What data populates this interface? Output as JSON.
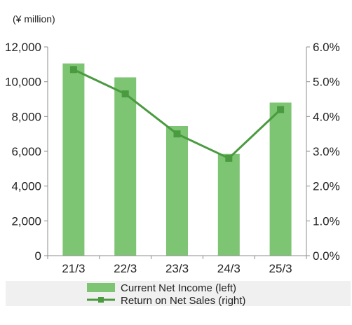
{
  "chart_data": {
    "type": "bar",
    "unit_label": "(¥ million)",
    "categories": [
      "21/3",
      "22/3",
      "23/3",
      "24/3",
      "25/3"
    ],
    "series": [
      {
        "name": "Current Net Income (left)",
        "type": "bar",
        "axis": "left",
        "color": "#7dc473",
        "values": [
          11050,
          10250,
          7450,
          5850,
          8800
        ]
      },
      {
        "name": "Return on Net Sales (right)",
        "type": "line",
        "axis": "right",
        "color": "#4a9a3f",
        "values": [
          5.35,
          4.65,
          3.5,
          2.8,
          4.2
        ]
      }
    ],
    "y_left": {
      "ylim": [
        0,
        12000
      ],
      "ticks": [
        0,
        2000,
        4000,
        6000,
        8000,
        10000,
        12000
      ],
      "tick_labels": [
        "0",
        "2,000",
        "4,000",
        "6,000",
        "8,000",
        "10,000",
        "12,000"
      ]
    },
    "y_right": {
      "ylim": [
        0,
        6
      ],
      "ticks": [
        0,
        1,
        2,
        3,
        4,
        5,
        6
      ],
      "tick_labels": [
        "0.0%",
        "1.0%",
        "2.0%",
        "3.0%",
        "4.0%",
        "5.0%",
        "6.0%"
      ]
    },
    "grid": false,
    "legend_position": "bottom"
  }
}
